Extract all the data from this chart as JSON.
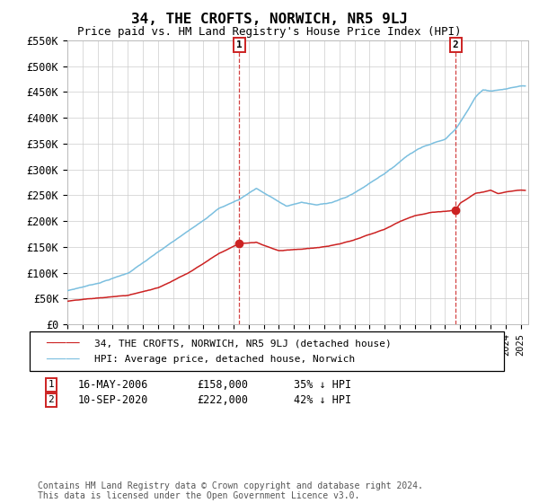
{
  "title": "34, THE CROFTS, NORWICH, NR5 9LJ",
  "subtitle": "Price paid vs. HM Land Registry's House Price Index (HPI)",
  "ylim": [
    0,
    550000
  ],
  "yticks": [
    0,
    50000,
    100000,
    150000,
    200000,
    250000,
    300000,
    350000,
    400000,
    450000,
    500000,
    550000
  ],
  "ytick_labels": [
    "£0",
    "£50K",
    "£100K",
    "£150K",
    "£200K",
    "£250K",
    "£300K",
    "£350K",
    "£400K",
    "£450K",
    "£500K",
    "£550K"
  ],
  "legend_line1": "34, THE CROFTS, NORWICH, NR5 9LJ (detached house)",
  "legend_line2": "HPI: Average price, detached house, Norwich",
  "sale1_date": "16-MAY-2006",
  "sale1_price": "£158,000",
  "sale1_hpi": "35% ↓ HPI",
  "sale2_date": "10-SEP-2020",
  "sale2_price": "£222,000",
  "sale2_hpi": "42% ↓ HPI",
  "footer": "Contains HM Land Registry data © Crown copyright and database right 2024.\nThis data is licensed under the Open Government Licence v3.0.",
  "hpi_color": "#7bbfdf",
  "price_color": "#cc2222",
  "vline_color": "#cc2222",
  "grid_color": "#cccccc",
  "background_color": "#ffffff",
  "sale1_x": 2006.38,
  "sale2_x": 2020.69,
  "sale1_y": 158000,
  "sale2_y": 222000,
  "xmin": 1995.0,
  "xmax": 2025.5
}
